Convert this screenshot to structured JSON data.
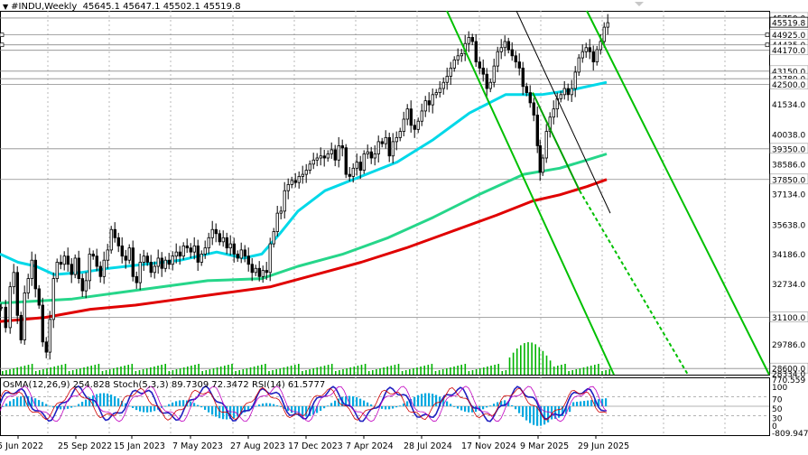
{
  "header": {
    "symbol": "#INDU,Weekly",
    "ohlc": "45645.1 45647.1 45502.1 45519.8"
  },
  "chart_data": {
    "type": "candlestick",
    "symbol": "#INDU",
    "timeframe": "Weekly",
    "ylim": [
      28300,
      46100
    ],
    "price_ticks": [
      "45750.0",
      "44925.0",
      "44435.0",
      "44170.0",
      "43150.0",
      "42780.0",
      "42500.0",
      "41534.0",
      "40038.0",
      "39350.0",
      "38586.0",
      "37850.0",
      "37134.0",
      "35638.0",
      "34186.0",
      "32734.0",
      "31100.0",
      "29786.0",
      "28600.0",
      "28334.0"
    ],
    "x_ticks": [
      "5 Jun 2022",
      "25 Sep 2022",
      "15 Jan 2023",
      "7 May 2023",
      "27 Aug 2023",
      "17 Dec 2023",
      "7 Apr 2024",
      "28 Jul 2024",
      "17 Nov 2024",
      "9 Mar 2025",
      "29 Jun 2025"
    ],
    "highlight_labels": [
      "45519.8"
    ],
    "horizontal_levels": [
      45750,
      44925,
      44435,
      44170,
      43150,
      42780,
      42500,
      39350,
      37850,
      31100,
      28600
    ],
    "close_path": [
      [
        0,
        31600
      ],
      [
        5,
        30600
      ],
      [
        10,
        32600
      ],
      [
        14,
        33300
      ],
      [
        18,
        31200
      ],
      [
        22,
        30000
      ],
      [
        26,
        32300
      ],
      [
        30,
        33000
      ],
      [
        34,
        33900
      ],
      [
        38,
        32500
      ],
      [
        42,
        31700
      ],
      [
        46,
        29900
      ],
      [
        50,
        29400
      ],
      [
        54,
        31000
      ],
      [
        58,
        33000
      ],
      [
        62,
        33800
      ],
      [
        66,
        33700
      ],
      [
        70,
        34100
      ],
      [
        74,
        33700
      ],
      [
        78,
        33200
      ],
      [
        82,
        34000
      ],
      [
        86,
        33000
      ],
      [
        90,
        32400
      ],
      [
        94,
        32900
      ],
      [
        98,
        34200
      ],
      [
        102,
        34100
      ],
      [
        106,
        33600
      ],
      [
        110,
        33100
      ],
      [
        114,
        33900
      ],
      [
        118,
        34400
      ],
      [
        122,
        35400
      ],
      [
        126,
        35000
      ],
      [
        130,
        34600
      ],
      [
        134,
        34100
      ],
      [
        138,
        33900
      ],
      [
        142,
        34500
      ],
      [
        146,
        33100
      ],
      [
        150,
        32800
      ],
      [
        154,
        33800
      ],
      [
        158,
        34100
      ],
      [
        162,
        33800
      ],
      [
        166,
        33300
      ],
      [
        170,
        33600
      ],
      [
        174,
        34000
      ],
      [
        178,
        33500
      ],
      [
        182,
        33900
      ],
      [
        186,
        33700
      ],
      [
        190,
        34100
      ],
      [
        194,
        34300
      ],
      [
        198,
        34100
      ],
      [
        202,
        34600
      ],
      [
        206,
        34500
      ],
      [
        210,
        34300
      ],
      [
        214,
        34600
      ],
      [
        218,
        33800
      ],
      [
        222,
        34200
      ],
      [
        226,
        34500
      ],
      [
        230,
        35000
      ],
      [
        234,
        35400
      ],
      [
        238,
        35200
      ],
      [
        242,
        34800
      ],
      [
        246,
        35000
      ],
      [
        250,
        34500
      ],
      [
        254,
        34700
      ],
      [
        258,
        34200
      ],
      [
        262,
        34000
      ],
      [
        266,
        34400
      ],
      [
        270,
        34100
      ],
      [
        274,
        33700
      ],
      [
        278,
        33300
      ],
      [
        282,
        33500
      ],
      [
        286,
        33100
      ],
      [
        290,
        33400
      ],
      [
        294,
        33300
      ],
      [
        298,
        34700
      ],
      [
        302,
        35300
      ],
      [
        306,
        36200
      ],
      [
        310,
        36300
      ],
      [
        314,
        37300
      ],
      [
        318,
        37600
      ],
      [
        322,
        37800
      ],
      [
        326,
        37700
      ],
      [
        330,
        38000
      ],
      [
        334,
        38100
      ],
      [
        338,
        38300
      ],
      [
        342,
        38600
      ],
      [
        346,
        38800
      ],
      [
        350,
        38900
      ],
      [
        354,
        39000
      ],
      [
        358,
        38900
      ],
      [
        362,
        39100
      ],
      [
        366,
        39300
      ],
      [
        370,
        38800
      ],
      [
        374,
        39500
      ],
      [
        378,
        39400
      ],
      [
        382,
        38100
      ],
      [
        386,
        38000
      ],
      [
        390,
        38400
      ],
      [
        394,
        38700
      ],
      [
        398,
        38300
      ],
      [
        402,
        39100
      ],
      [
        406,
        39200
      ],
      [
        410,
        38900
      ],
      [
        414,
        39100
      ],
      [
        418,
        39700
      ],
      [
        422,
        39600
      ],
      [
        426,
        39900
      ],
      [
        430,
        39000
      ],
      [
        434,
        39700
      ],
      [
        438,
        39900
      ],
      [
        442,
        40200
      ],
      [
        446,
        40800
      ],
      [
        450,
        41300
      ],
      [
        454,
        40500
      ],
      [
        458,
        40300
      ],
      [
        462,
        40700
      ],
      [
        466,
        41200
      ],
      [
        470,
        41700
      ],
      [
        474,
        41500
      ],
      [
        478,
        42000
      ],
      [
        482,
        42100
      ],
      [
        486,
        42300
      ],
      [
        490,
        42600
      ],
      [
        494,
        42900
      ],
      [
        498,
        43300
      ],
      [
        502,
        43700
      ],
      [
        506,
        43900
      ],
      [
        510,
        44000
      ],
      [
        514,
        44500
      ],
      [
        518,
        44800
      ],
      [
        522,
        44600
      ],
      [
        526,
        43600
      ],
      [
        530,
        43300
      ],
      [
        534,
        43000
      ],
      [
        538,
        42300
      ],
      [
        542,
        42600
      ],
      [
        546,
        43400
      ],
      [
        550,
        44100
      ],
      [
        554,
        44300
      ],
      [
        558,
        44600
      ],
      [
        562,
        44200
      ],
      [
        566,
        43900
      ],
      [
        570,
        43600
      ],
      [
        574,
        43300
      ],
      [
        578,
        42400
      ],
      [
        582,
        42100
      ],
      [
        586,
        41600
      ],
      [
        590,
        41000
      ],
      [
        594,
        39500
      ],
      [
        597,
        38200
      ],
      [
        600,
        38900
      ],
      [
        604,
        40200
      ],
      [
        608,
        40900
      ],
      [
        612,
        41300
      ],
      [
        616,
        41800
      ],
      [
        620,
        42000
      ],
      [
        624,
        42300
      ],
      [
        628,
        42000
      ],
      [
        632,
        42300
      ],
      [
        636,
        43100
      ],
      [
        640,
        43800
      ],
      [
        644,
        44100
      ],
      [
        648,
        44300
      ],
      [
        652,
        44100
      ],
      [
        656,
        43600
      ],
      [
        660,
        44200
      ],
      [
        664,
        44600
      ],
      [
        668,
        45300
      ],
      [
        672,
        45520
      ]
    ],
    "volume_heights_px": [],
    "ma_series": [
      {
        "color": "#00d8e8",
        "points": [
          [
            0,
            34200
          ],
          [
            20,
            33800
          ],
          [
            40,
            33600
          ],
          [
            60,
            33200
          ],
          [
            90,
            33300
          ],
          [
            120,
            33500
          ],
          [
            160,
            33700
          ],
          [
            200,
            33900
          ],
          [
            240,
            34300
          ],
          [
            270,
            34000
          ],
          [
            290,
            34200
          ],
          [
            310,
            35200
          ],
          [
            330,
            36300
          ],
          [
            360,
            37300
          ],
          [
            400,
            38000
          ],
          [
            440,
            38700
          ],
          [
            480,
            39800
          ],
          [
            520,
            41100
          ],
          [
            560,
            42000
          ],
          [
            600,
            42000
          ],
          [
            630,
            42200
          ],
          [
            672,
            42600
          ]
        ]
      },
      {
        "color": "#26d68a",
        "points": [
          [
            0,
            31800
          ],
          [
            40,
            31900
          ],
          [
            80,
            32000
          ],
          [
            130,
            32300
          ],
          [
            180,
            32600
          ],
          [
            230,
            32900
          ],
          [
            290,
            33000
          ],
          [
            330,
            33600
          ],
          [
            380,
            34200
          ],
          [
            430,
            35000
          ],
          [
            480,
            36000
          ],
          [
            530,
            37100
          ],
          [
            580,
            38100
          ],
          [
            620,
            38400
          ],
          [
            650,
            38800
          ],
          [
            672,
            39100
          ]
        ]
      },
      {
        "color": "#e00000",
        "points": [
          [
            0,
            30900
          ],
          [
            50,
            31100
          ],
          [
            100,
            31500
          ],
          [
            150,
            31700
          ],
          [
            200,
            32000
          ],
          [
            250,
            32300
          ],
          [
            300,
            32600
          ],
          [
            350,
            33200
          ],
          [
            400,
            33800
          ],
          [
            450,
            34500
          ],
          [
            500,
            35300
          ],
          [
            550,
            36100
          ],
          [
            590,
            36800
          ],
          [
            620,
            37100
          ],
          [
            650,
            37500
          ],
          [
            672,
            37850
          ]
        ]
      }
    ],
    "channel_lines": [
      {
        "color": "#00c000",
        "style": "solid",
        "points": [
          [
            495,
            46100
          ],
          [
            680,
            28300
          ]
        ]
      },
      {
        "color": "#00c000",
        "style": "solid",
        "points": [
          [
            650,
            46100
          ],
          [
            852,
            28300
          ]
        ]
      },
      {
        "color": "#00a000",
        "style": "solid",
        "points": [
          [
            590,
            42100
          ],
          [
            642,
            37300
          ]
        ]
      },
      {
        "color": "#00c000",
        "style": "dashed",
        "points": [
          [
            642,
            37300
          ],
          [
            762,
            28300
          ]
        ]
      },
      {
        "color": "#000000",
        "style": "solid",
        "points": [
          [
            572,
            46100
          ],
          [
            676,
            36200
          ]
        ]
      }
    ],
    "oscillator": {
      "label": "OsMA(12,26,9) 254.828  Stoch(5,3,3) 89.7309 72.3472  RSI(14) 61.5777",
      "right_ticks": [
        "770.559",
        "100",
        "70",
        "50",
        "30",
        "0",
        "-809.947"
      ]
    }
  }
}
